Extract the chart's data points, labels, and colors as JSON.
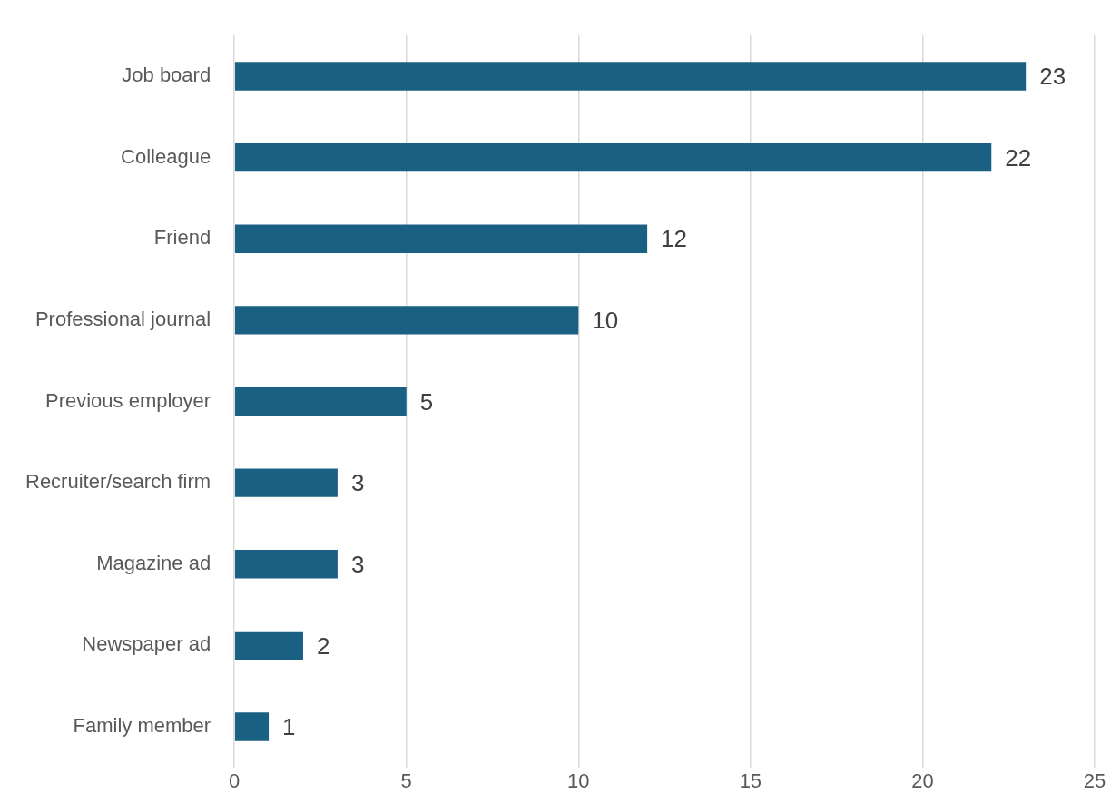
{
  "chart_data": {
    "type": "bar",
    "orientation": "horizontal",
    "categories": [
      "Job board",
      "Colleague",
      "Friend",
      "Professional journal",
      "Previous employer",
      "Recruiter/search firm",
      "Magazine ad",
      "Newspaper ad",
      "Family member"
    ],
    "values": [
      23,
      22,
      12,
      10,
      5,
      3,
      3,
      2,
      1
    ],
    "color": "#1a6083",
    "xlim": [
      0,
      25
    ],
    "xticks": [
      0,
      5,
      10,
      15,
      20,
      25
    ],
    "grid": "x",
    "data_labels": true,
    "legend": false
  }
}
